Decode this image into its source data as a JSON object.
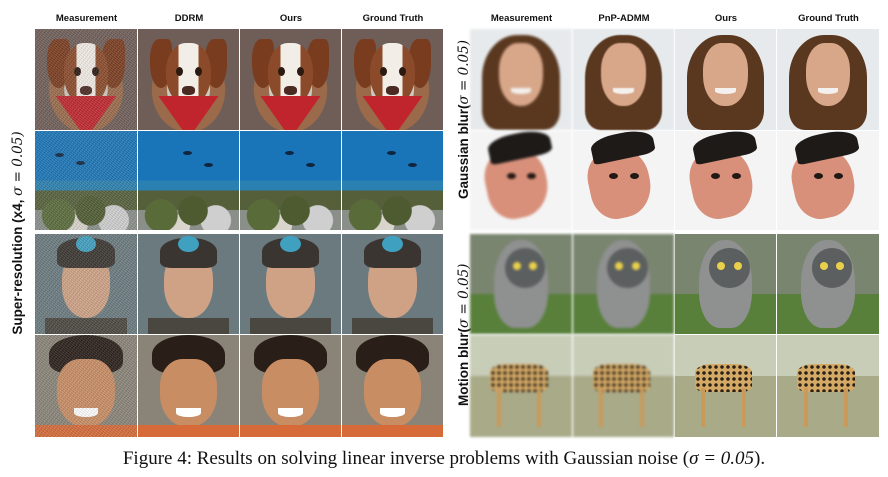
{
  "left_panel": {
    "columns": [
      "Measurement",
      "DDRM",
      "Ours",
      "Ground Truth"
    ],
    "row_label_main": "Super-resolution (x4, ",
    "row_label_sigma": "σ = 0.05)"
  },
  "right_panel": {
    "columns": [
      "Measurement",
      "PnP-ADMM",
      "Ours",
      "Ground Truth"
    ],
    "row_label_top_main": "Gaussian blur(",
    "row_label_top_sigma": "σ = 0.05)",
    "row_label_bottom_main": "Motion blur(",
    "row_label_bottom_sigma": "σ = 0.05)"
  },
  "caption": {
    "prefix": "Figure 4: Results on solving linear inverse problems with Gaussian noise (",
    "math": "σ = 0.05",
    "suffix": ")."
  }
}
